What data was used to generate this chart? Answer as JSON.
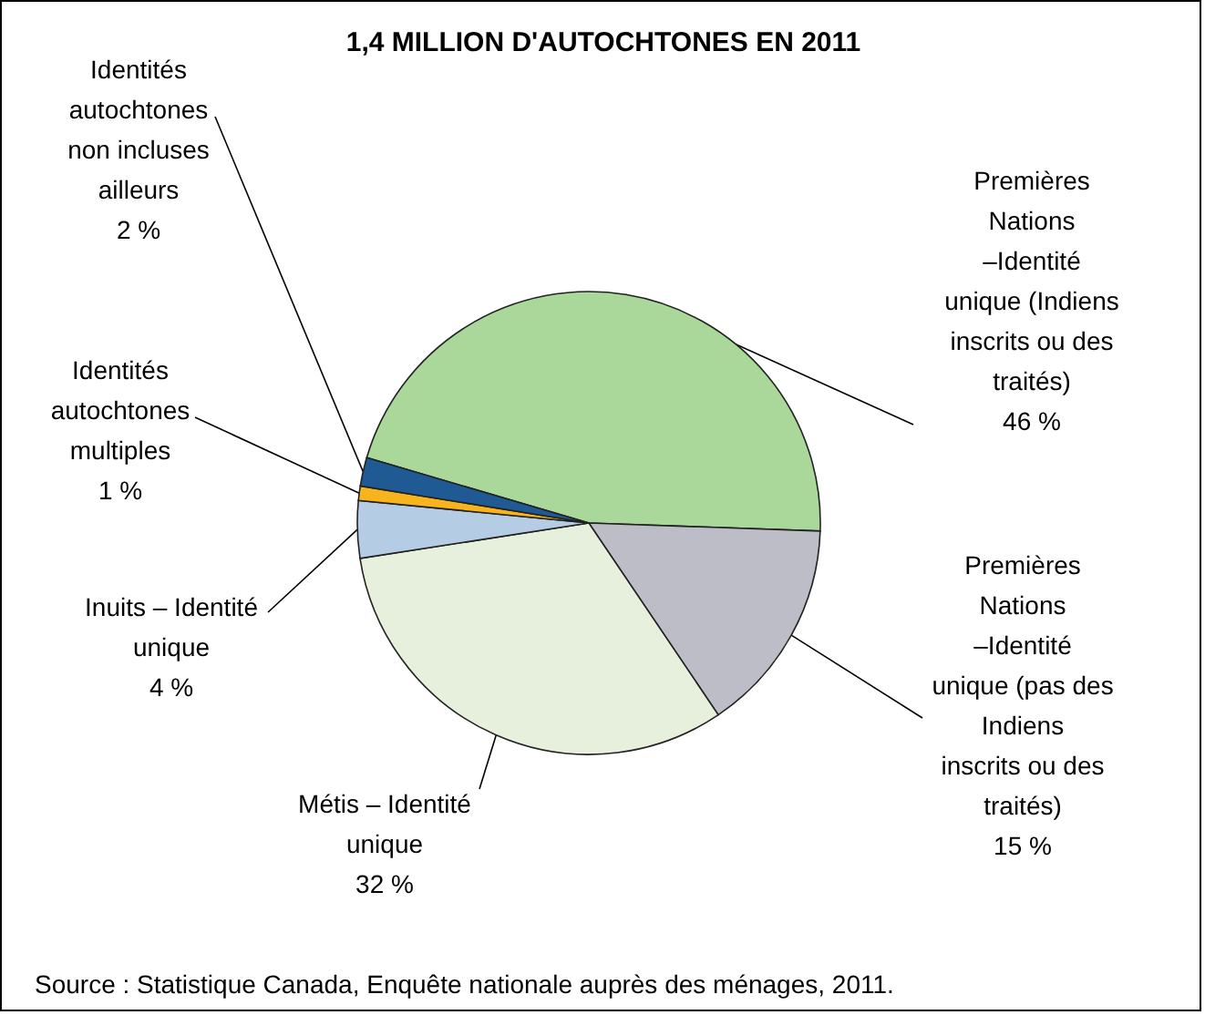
{
  "chart_data": {
    "type": "pie",
    "title": "1,4 MILLION D'AUTOCHTONES EN 2011",
    "categories": [
      "Premières Nations –Identité unique (Indiens inscrits ou des traités)",
      "Premières Nations –Identité unique (pas des Indiens inscrits ou des traités)",
      "Métis – Identité unique",
      "Inuits – Identité unique",
      "Identités autochtones multiples",
      "Identités autochtones non incluses ailleurs"
    ],
    "values": [
      46,
      15,
      32,
      4,
      1,
      2
    ],
    "value_labels": [
      "46 %",
      "15 %",
      "32 %",
      "4 %",
      "1 %",
      "2 %"
    ],
    "colors": [
      "#a9d89a",
      "#bdbdc7",
      "#e6f0dd",
      "#b4cce4",
      "#f7b41c",
      "#1f5a94"
    ],
    "annotations": [
      "Source : Statistique Canada, Enquête nationale auprès des ménages, 2011."
    ]
  }
}
